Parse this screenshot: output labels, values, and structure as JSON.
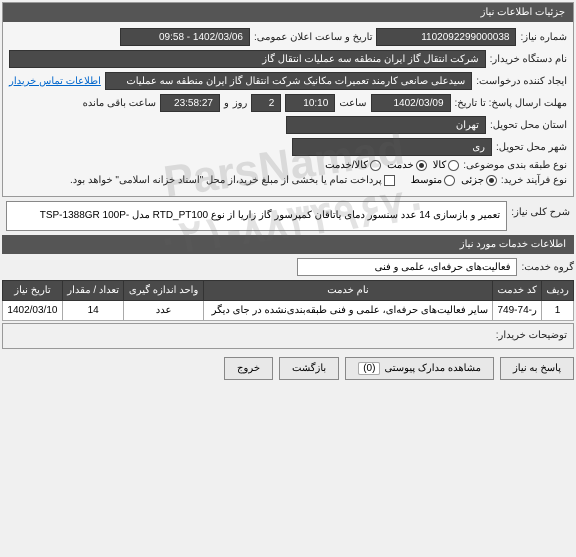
{
  "colors": {
    "header_bg": "#555555",
    "header_fg": "#ffffff",
    "field_dark_bg": "#4a4a4a",
    "field_dark_fg": "#ffffff",
    "field_light_bg": "#ffffff",
    "link": "#0066cc",
    "border": "#888888"
  },
  "panel": {
    "title": "جزئیات اطلاعات نیاز"
  },
  "labels": {
    "need_no": "شماره نیاز:",
    "announce": "تاریخ و ساعت اعلان عمومی:",
    "buyer_org": "نام دستگاه خریدار:",
    "creator": "ایجاد کننده درخواست:",
    "deadline": "مهلت ارسال پاسخ: تا تاریخ:",
    "time": "ساعت",
    "days_remaining_suffix": "ساعت باقی مانده",
    "and": "و",
    "day": "روز",
    "delivery_province": "استان محل تحویل:",
    "delivery_city": "شهر محل تحویل:",
    "subject_type": "نوع طبقه بندی موضوعی:",
    "goods": "کالا",
    "service": "خدمت",
    "goods_service": "کالا/خدمت",
    "process_type": "نوع فرآیند خرید:",
    "partial": "جزئی",
    "medium": "متوسط",
    "payment_note": "پرداخت تمام یا بخشی از مبلغ خرید،از محل \"اسناد خزانه اسلامی\" خواهد بود.",
    "overall_desc": "شرح کلی نیاز:",
    "services_info": "اطلاعات خدمات مورد نیاز",
    "service_group": "گروه خدمت:",
    "buyer_notes": "توضیحات خریدار:",
    "contact": "اطلاعات تماس خریدار"
  },
  "watermark": {
    "line1": "ParsNamad",
    "line2": "۰۲۱-۸۸۳۴۹۶۷۰"
  },
  "values": {
    "need_no": "1102092299000038",
    "announce_datetime": "1402/03/06 - 09:58",
    "buyer_org": "شرکت انتقال گاز ایران منطقه سه عملیات انتقال گاز",
    "creator": "سیدعلی صانعی کارمند تعمیرات مکانیک شرکت انتقال گاز ایران منطقه سه عملیات",
    "deadline_date": "1402/03/09",
    "deadline_time": "10:10",
    "remaining_days": "2",
    "remaining_time": "23:58:27",
    "province": "تهران",
    "city": "ری",
    "subject_selected": "service",
    "process_selected": "partial",
    "description": "تعمیر و بازسازی 14 عدد سنسور دمای یاتاقان کمپرسور گاز زاریا از نوع RTD_PT100 مدل -TSP-1388GR 100P",
    "service_group": "فعالیت‌های حرفه‌ای، علمی و فنی"
  },
  "table": {
    "columns": [
      "ردیف",
      "کد خدمت",
      "نام خدمت",
      "واحد اندازه گیری",
      "تعداد / مقدار",
      "تاریخ نیاز"
    ],
    "rows": [
      [
        "1",
        "ر-74-749",
        "سایر فعالیت‌های حرفه‌ای، علمی و فنی طبقه‌بندی‌نشده در جای دیگر",
        "عدد",
        "14",
        "1402/03/10"
      ]
    ]
  },
  "buttons": {
    "reply": "پاسخ به نیاز",
    "attachments": "مشاهده مدارک پیوستی",
    "attachments_count": "(0)",
    "back": "بازگشت",
    "exit": "خروج"
  }
}
